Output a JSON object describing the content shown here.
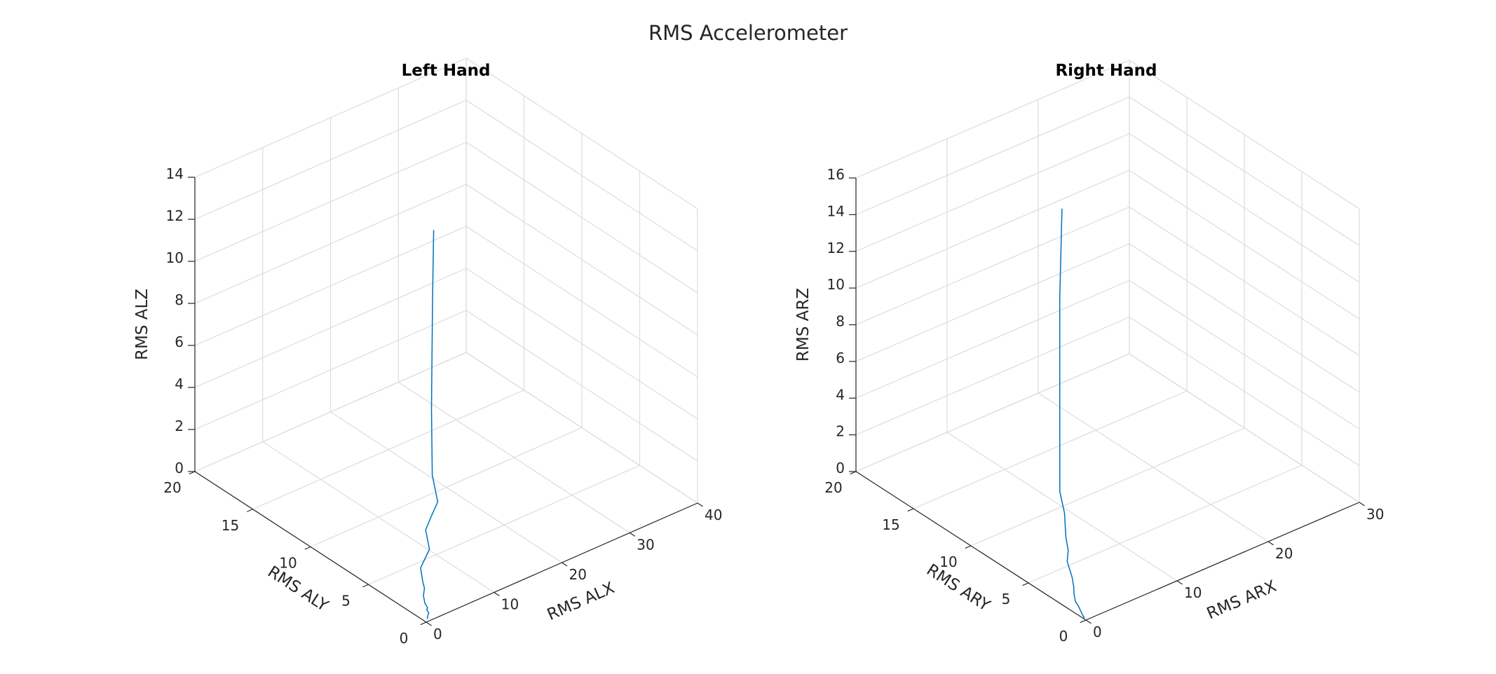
{
  "figure_title": "RMS Accelerometer",
  "colors": {
    "series": "#0072BD",
    "grid": "#dcdcdc",
    "axis": "#262626"
  },
  "chart_data": [
    {
      "type": "line",
      "title": "Left Hand",
      "xlabel": "RMS ALX",
      "ylabel": "RMS ALY",
      "zlabel": "RMS ALZ",
      "xlim": [
        0,
        40
      ],
      "ylim": [
        0,
        20
      ],
      "zlim": [
        0,
        14
      ],
      "xticks": [
        0,
        10,
        20,
        30,
        40
      ],
      "yticks": [
        0,
        5,
        10,
        15,
        20
      ],
      "zticks": [
        0,
        2,
        4,
        6,
        8,
        10,
        12,
        14
      ],
      "grid": true,
      "series": [
        {
          "x": [
            0.5,
            0.9,
            1.4,
            1.6,
            1.9,
            2.2,
            3.0,
            4.0,
            4.6,
            6.0,
            9.0,
            11.0,
            13.0,
            15.0,
            17.6,
            18.0,
            18.5,
            19.0
          ],
          "y": [
            0.2,
            0.4,
            0.6,
            0.9,
            1.0,
            1.4,
            2.0,
            2.5,
            3.0,
            4.0,
            5.0,
            6.5,
            7.2,
            7.8,
            9.8,
            10.1,
            10.3,
            10.5
          ],
          "z": [
            0.0,
            0.02,
            0.03,
            0.05,
            0.06,
            0.08,
            0.12,
            0.15,
            0.2,
            0.3,
            0.4,
            0.5,
            0.6,
            0.8,
            1.0,
            4.0,
            9.0,
            12.2
          ]
        }
      ]
    },
    {
      "type": "line",
      "title": "Right Hand",
      "xlabel": "RMS ARX",
      "ylabel": "RMS ARY",
      "zlabel": "RMS ARZ",
      "xlim": [
        0,
        30
      ],
      "ylim": [
        0,
        20
      ],
      "zlim": [
        0,
        16
      ],
      "xticks": [
        0,
        10,
        20,
        30
      ],
      "yticks": [
        0,
        5,
        10,
        15,
        20
      ],
      "zticks": [
        0,
        2,
        4,
        6,
        8,
        10,
        12,
        14,
        16
      ],
      "grid": true,
      "series": [
        {
          "x": [
            0.1,
            0.2,
            0.4,
            0.6,
            0.8,
            1.0,
            1.3,
            1.6,
            2.2,
            2.9,
            4.0,
            5.0,
            6.0,
            8.0,
            9.5,
            10.0,
            10.5,
            11.0
          ],
          "y": [
            0.2,
            0.4,
            0.7,
            1.0,
            1.3,
            1.7,
            2.0,
            2.3,
            2.8,
            3.5,
            4.8,
            5.5,
            6.5,
            8.2,
            9.8,
            10.2,
            10.6,
            10.8
          ],
          "z": [
            0.0,
            0.02,
            0.04,
            0.06,
            0.08,
            0.1,
            0.12,
            0.15,
            0.2,
            0.3,
            0.4,
            0.5,
            0.6,
            0.8,
            1.0,
            5.0,
            11.0,
            15.7
          ]
        }
      ]
    }
  ]
}
